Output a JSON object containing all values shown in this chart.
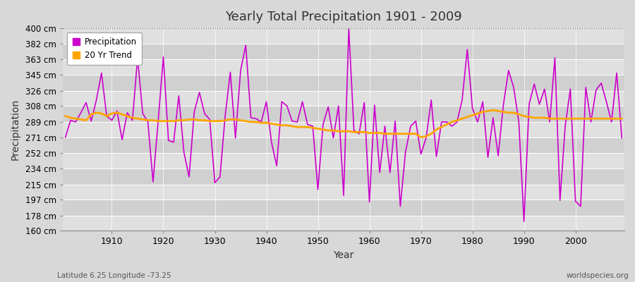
{
  "title": "Yearly Total Precipitation 1901 - 2009",
  "xlabel": "Year",
  "ylabel": "Precipitation",
  "subtitle": "Latitude 6.25 Longitude -73.25",
  "watermark": "worldspecies.org",
  "bg_color": "#d8d8d8",
  "plot_bg_color": "#d8d8d8",
  "precip_color": "#cc00cc",
  "trend_color": "#FFA500",
  "ylim": [
    160,
    400
  ],
  "yticks": [
    160,
    178,
    197,
    215,
    234,
    252,
    271,
    289,
    308,
    326,
    345,
    363,
    382,
    400
  ],
  "xlim_start": 1901,
  "xlim_end": 2009,
  "years": [
    1901,
    1902,
    1903,
    1904,
    1905,
    1906,
    1907,
    1908,
    1909,
    1910,
    1911,
    1912,
    1913,
    1914,
    1915,
    1916,
    1917,
    1918,
    1919,
    1920,
    1921,
    1922,
    1923,
    1924,
    1925,
    1926,
    1927,
    1928,
    1929,
    1930,
    1931,
    1932,
    1933,
    1934,
    1935,
    1936,
    1937,
    1938,
    1939,
    1940,
    1941,
    1942,
    1943,
    1944,
    1945,
    1946,
    1947,
    1948,
    1949,
    1950,
    1951,
    1952,
    1953,
    1954,
    1955,
    1956,
    1957,
    1958,
    1959,
    1960,
    1961,
    1962,
    1963,
    1964,
    1965,
    1966,
    1967,
    1968,
    1969,
    1970,
    1971,
    1972,
    1973,
    1974,
    1975,
    1976,
    1977,
    1978,
    1979,
    1980,
    1981,
    1982,
    1983,
    1984,
    1985,
    1986,
    1987,
    1988,
    1989,
    1990,
    1991,
    1992,
    1993,
    1994,
    1995,
    1996,
    1997,
    1998,
    1999,
    2000,
    2001,
    2002,
    2003,
    2004,
    2005,
    2006,
    2007,
    2008,
    2009
  ],
  "precip": [
    271,
    291,
    289,
    300,
    312,
    290,
    315,
    347,
    296,
    291,
    302,
    268,
    300,
    291,
    365,
    299,
    289,
    218,
    290,
    366,
    267,
    265,
    320,
    253,
    224,
    301,
    324,
    299,
    292,
    217,
    224,
    296,
    348,
    270,
    350,
    380,
    294,
    293,
    289,
    313,
    265,
    237,
    313,
    308,
    290,
    289,
    313,
    286,
    284,
    209,
    286,
    307,
    270,
    308,
    202,
    400,
    279,
    275,
    312,
    194,
    309,
    229,
    284,
    229,
    290,
    189,
    253,
    284,
    290,
    251,
    270,
    315,
    248,
    289,
    289,
    284,
    289,
    315,
    375,
    305,
    289,
    313,
    247,
    294,
    249,
    309,
    350,
    330,
    289,
    171,
    310,
    334,
    310,
    328,
    289,
    365,
    196,
    284,
    328,
    195,
    189,
    330,
    289,
    327,
    335,
    313,
    289,
    347,
    270
  ],
  "trend": [
    296,
    294,
    293,
    292,
    291,
    298,
    300,
    299,
    296,
    299,
    300,
    298,
    296,
    294,
    293,
    292,
    291,
    291,
    290,
    290,
    290,
    290,
    291,
    291,
    292,
    292,
    291,
    291,
    290,
    290,
    290,
    291,
    292,
    292,
    291,
    290,
    289,
    289,
    288,
    288,
    287,
    286,
    285,
    285,
    284,
    283,
    283,
    283,
    282,
    281,
    280,
    279,
    279,
    278,
    278,
    278,
    277,
    277,
    277,
    276,
    276,
    276,
    275,
    275,
    275,
    275,
    275,
    275,
    275,
    271,
    272,
    275,
    280,
    283,
    286,
    289,
    291,
    293,
    295,
    297,
    299,
    301,
    302,
    303,
    302,
    301,
    300,
    300,
    298,
    296,
    295,
    294,
    294,
    294,
    293,
    293,
    293,
    293,
    293,
    293,
    293,
    293,
    293,
    293,
    293,
    293,
    293,
    293,
    293
  ]
}
